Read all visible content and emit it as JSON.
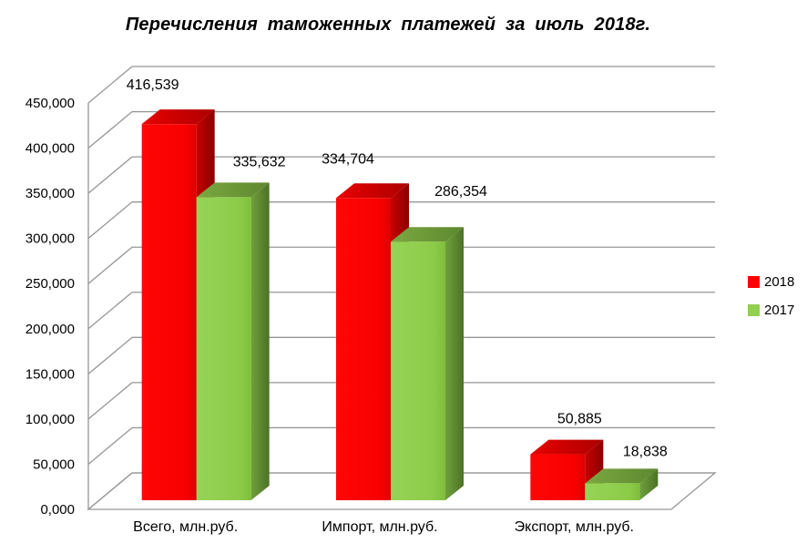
{
  "title": "Перечисления таможенных платежей за июль 2018г.",
  "chart_data": {
    "type": "bar",
    "subtype": "3d-clustered-column",
    "title": "Перечисления таможенных платежей за июль 2018г.",
    "categories": [
      "Всего, млн.руб.",
      "Импорт, млн.руб.",
      "Экспорт, млн.руб."
    ],
    "series": [
      {
        "name": "2018",
        "color": "#FF0000",
        "values": [
          416.539,
          334.704,
          50.885
        ],
        "value_labels": [
          "416,539",
          "334,704",
          "50,885"
        ]
      },
      {
        "name": "2017",
        "color": "#92D050",
        "values": [
          335.632,
          286.354,
          18.838
        ],
        "value_labels": [
          "335,632",
          "286,354",
          "18,838"
        ]
      }
    ],
    "xlabel": "",
    "ylabel": "",
    "ylim": [
      0,
      450
    ],
    "ytick_step": 50,
    "ytick_labels": [
      "0,000",
      "50,000",
      "100,000",
      "150,000",
      "200,000",
      "250,000",
      "300,000",
      "350,000",
      "400,000",
      "450,000"
    ],
    "grid": true,
    "gridline_color": "#969696",
    "background": "#FFFFFF",
    "legend_position": "right"
  }
}
